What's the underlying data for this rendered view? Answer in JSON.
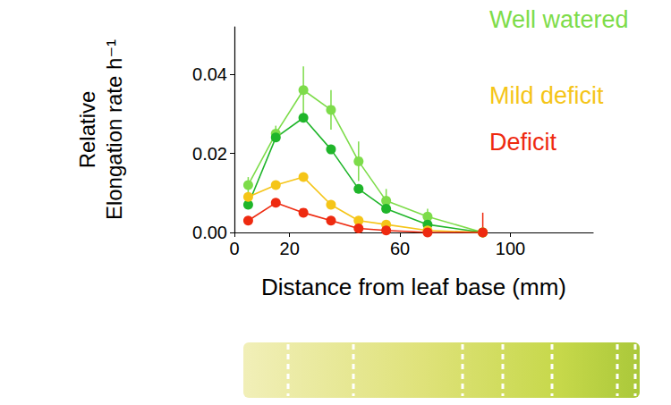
{
  "chart_data": {
    "type": "line",
    "x_label": "Distance from leaf base (mm)",
    "y_label": "Relative Elongation rate h⁻¹",
    "x": [
      5,
      15,
      25,
      35,
      45,
      55,
      70,
      90
    ],
    "series": [
      {
        "name": "Well watered",
        "color": "#7ddc4a",
        "values": [
          0.012,
          0.025,
          0.036,
          0.031,
          0.018,
          0.008,
          0.004,
          0
        ],
        "errors": [
          0.002,
          0.002,
          0.006,
          0.005,
          0.005,
          0.003,
          0.002,
          null
        ]
      },
      {
        "color": "#1fb52a",
        "values": [
          0.007,
          0.024,
          0.029,
          0.021,
          0.011,
          0.006,
          0.002,
          0
        ]
      },
      {
        "name": "Mild deficit",
        "color": "#f5c518",
        "values": [
          0.009,
          0.012,
          0.014,
          0.007,
          0.003,
          0.002,
          0.0005,
          0
        ]
      },
      {
        "name": "Deficit",
        "color": "#ee2a10",
        "values": [
          0.003,
          0.0075,
          0.005,
          0.003,
          0.001,
          0.0005,
          0,
          0
        ],
        "errors": [
          null,
          null,
          null,
          null,
          null,
          null,
          null,
          0.005
        ]
      }
    ],
    "xlim": [
      0,
      130
    ],
    "xticks": [
      0,
      20,
      60,
      100
    ],
    "ylim": [
      0,
      0.052
    ],
    "yticks": [
      {
        "value": 0,
        "label": "0.00"
      },
      {
        "value": 0.02,
        "label": "0.02"
      },
      {
        "value": 0.04,
        "label": "0.04"
      }
    ],
    "grid": false,
    "legend": "upper right",
    "marker": "circle",
    "line_style": "solid"
  }
}
